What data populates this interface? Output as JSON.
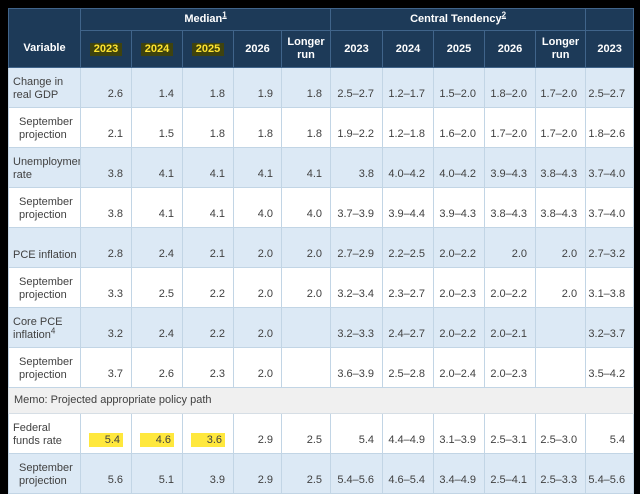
{
  "colors": {
    "header_navy": "#1d3a58",
    "row_blue": "#dce9f5",
    "memo_gray": "#f0f0f0",
    "highlight_yellow": "#ffe83d",
    "header_highlight_text": "#ffe430",
    "header_highlight_bg": "#3f430e"
  },
  "table": {
    "header": {
      "variable_label": "Variable",
      "groups": [
        {
          "label": "Median",
          "sup": "1"
        },
        {
          "label": "Central Tendency",
          "sup": "2"
        },
        {
          "label": ""
        }
      ],
      "years": {
        "median": [
          {
            "label": "2023",
            "hl": true
          },
          {
            "label": "2024",
            "hl": true
          },
          {
            "label": "2025",
            "hl": true
          },
          {
            "label": "2026",
            "hl": false
          },
          {
            "label": "Longer run",
            "hl": false
          }
        ],
        "central_tendency": [
          {
            "label": "2023",
            "hl": false
          },
          {
            "label": "2024",
            "hl": false
          },
          {
            "label": "2025",
            "hl": false
          },
          {
            "label": "2026",
            "hl": false
          },
          {
            "label": "Longer run",
            "hl": false
          }
        ],
        "range": [
          {
            "label": "2023",
            "hl": false
          }
        ]
      }
    },
    "rows": [
      {
        "type": "data",
        "label": "Change in real GDP",
        "zebra": "blue",
        "cells": [
          "2.6",
          "1.4",
          "1.8",
          "1.9",
          "1.8",
          "2.5–2.7",
          "1.2–1.7",
          "1.5–2.0",
          "1.8–2.0",
          "1.7–2.0",
          "2.5–2.7"
        ]
      },
      {
        "type": "data",
        "label": "September projection",
        "indent": true,
        "zebra": "white",
        "cells": [
          "2.1",
          "1.5",
          "1.8",
          "1.8",
          "1.8",
          "1.9–2.2",
          "1.2–1.8",
          "1.6–2.0",
          "1.7–2.0",
          "1.7–2.0",
          "1.8–2.6"
        ]
      },
      {
        "type": "data",
        "label": "Unemployment rate",
        "zebra": "blue",
        "cells": [
          "3.8",
          "4.1",
          "4.1",
          "4.1",
          "4.1",
          "3.8",
          "4.0–4.2",
          "4.0–4.2",
          "3.9–4.3",
          "3.8–4.3",
          "3.7–4.0"
        ]
      },
      {
        "type": "data",
        "label": "September projection",
        "indent": true,
        "zebra": "white",
        "cells": [
          "3.8",
          "4.1",
          "4.1",
          "4.0",
          "4.0",
          "3.7–3.9",
          "3.9–4.4",
          "3.9–4.3",
          "3.8–4.3",
          "3.8–4.3",
          "3.7–4.0"
        ]
      },
      {
        "type": "data",
        "label": "PCE inflation",
        "zebra": "blue",
        "cells": [
          "2.8",
          "2.4",
          "2.1",
          "2.0",
          "2.0",
          "2.7–2.9",
          "2.2–2.5",
          "2.0–2.2",
          "2.0",
          "2.0",
          "2.7–3.2"
        ]
      },
      {
        "type": "data",
        "label": "September projection",
        "indent": true,
        "zebra": "white",
        "cells": [
          "3.3",
          "2.5",
          "2.2",
          "2.0",
          "2.0",
          "3.2–3.4",
          "2.3–2.7",
          "2.0–2.3",
          "2.0–2.2",
          "2.0",
          "3.1–3.8"
        ]
      },
      {
        "type": "data",
        "label": "Core PCE inflation",
        "sup": "4",
        "zebra": "blue",
        "cells": [
          "3.2",
          "2.4",
          "2.2",
          "2.0",
          "",
          "3.2–3.3",
          "2.4–2.7",
          "2.0–2.2",
          "2.0–2.1",
          "",
          "3.2–3.7"
        ]
      },
      {
        "type": "data",
        "label": "September projection",
        "indent": true,
        "zebra": "white",
        "cells": [
          "3.7",
          "2.6",
          "2.3",
          "2.0",
          "",
          "3.6–3.9",
          "2.5–2.8",
          "2.0–2.4",
          "2.0–2.3",
          "",
          "3.5–4.2"
        ]
      },
      {
        "type": "memo",
        "label": "Memo: Projected appropriate policy path"
      },
      {
        "type": "data",
        "label": "Federal funds rate",
        "zebra": "white",
        "cells": [
          {
            "v": "5.4",
            "hl": true
          },
          {
            "v": "4.6",
            "hl": true
          },
          {
            "v": "3.6",
            "hl": true
          },
          "2.9",
          "2.5",
          "5.4",
          "4.4–4.9",
          "3.1–3.9",
          "2.5–3.1",
          "2.5–3.0",
          "5.4"
        ]
      },
      {
        "type": "data",
        "label": "September projection",
        "indent": true,
        "zebra": "blue",
        "cells": [
          "5.6",
          "5.1",
          "3.9",
          "2.9",
          "2.5",
          "5.4–5.6",
          "4.6–5.4",
          "3.4–4.9",
          "2.5–4.1",
          "2.5–3.3",
          "5.4–5.6"
        ]
      }
    ]
  }
}
